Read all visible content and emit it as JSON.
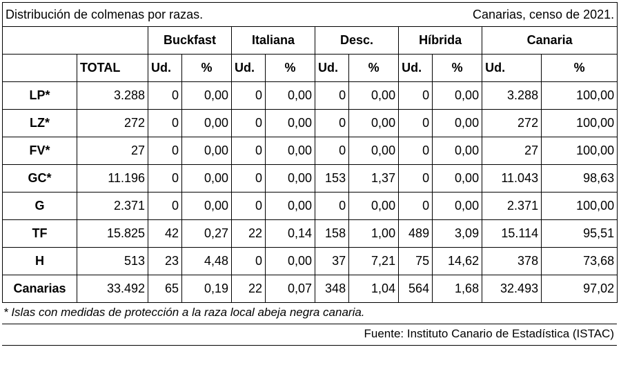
{
  "title_left": "Distribución de colmenas por razas.",
  "title_right": "Canarias, censo de 2021.",
  "breeds": [
    "Buckfast",
    "Italiana",
    "Desc.",
    "Híbrida",
    "Canaria"
  ],
  "total_label": "TOTAL",
  "unit_label": "Ud.",
  "pct_label": "%",
  "rows": [
    {
      "label": "LP*",
      "total": "3.288",
      "cells": [
        "0",
        "0,00",
        "0",
        "0,00",
        "0",
        "0,00",
        "0",
        "0,00",
        "3.288",
        "100,00"
      ]
    },
    {
      "label": "LZ*",
      "total": "272",
      "cells": [
        "0",
        "0,00",
        "0",
        "0,00",
        "0",
        "0,00",
        "0",
        "0,00",
        "272",
        "100,00"
      ]
    },
    {
      "label": "FV*",
      "total": "27",
      "cells": [
        "0",
        "0,00",
        "0",
        "0,00",
        "0",
        "0,00",
        "0",
        "0,00",
        "27",
        "100,00"
      ]
    },
    {
      "label": "GC*",
      "total": "11.196",
      "cells": [
        "0",
        "0,00",
        "0",
        "0,00",
        "153",
        "1,37",
        "0",
        "0,00",
        "11.043",
        "98,63"
      ]
    },
    {
      "label": "G",
      "total": "2.371",
      "cells": [
        "0",
        "0,00",
        "0",
        "0,00",
        "0",
        "0,00",
        "0",
        "0,00",
        "2.371",
        "100,00"
      ]
    },
    {
      "label": "TF",
      "total": "15.825",
      "cells": [
        "42",
        "0,27",
        "22",
        "0,14",
        "158",
        "1,00",
        "489",
        "3,09",
        "15.114",
        "95,51"
      ]
    },
    {
      "label": "H",
      "total": "513",
      "cells": [
        "23",
        "4,48",
        "0",
        "0,00",
        "37",
        "7,21",
        "75",
        "14,62",
        "378",
        "73,68"
      ]
    }
  ],
  "total_row": {
    "label": "Canarias",
    "total": "33.492",
    "cells": [
      "65",
      "0,19",
      "22",
      "0,07",
      "348",
      "1,04",
      "564",
      "1,68",
      "32.493",
      "97,02"
    ]
  },
  "footnote": "* Islas con medidas de protección a la raza local abeja negra canaria.",
  "source": "Fuente: Instituto Canario de Estadística (ISTAC)"
}
